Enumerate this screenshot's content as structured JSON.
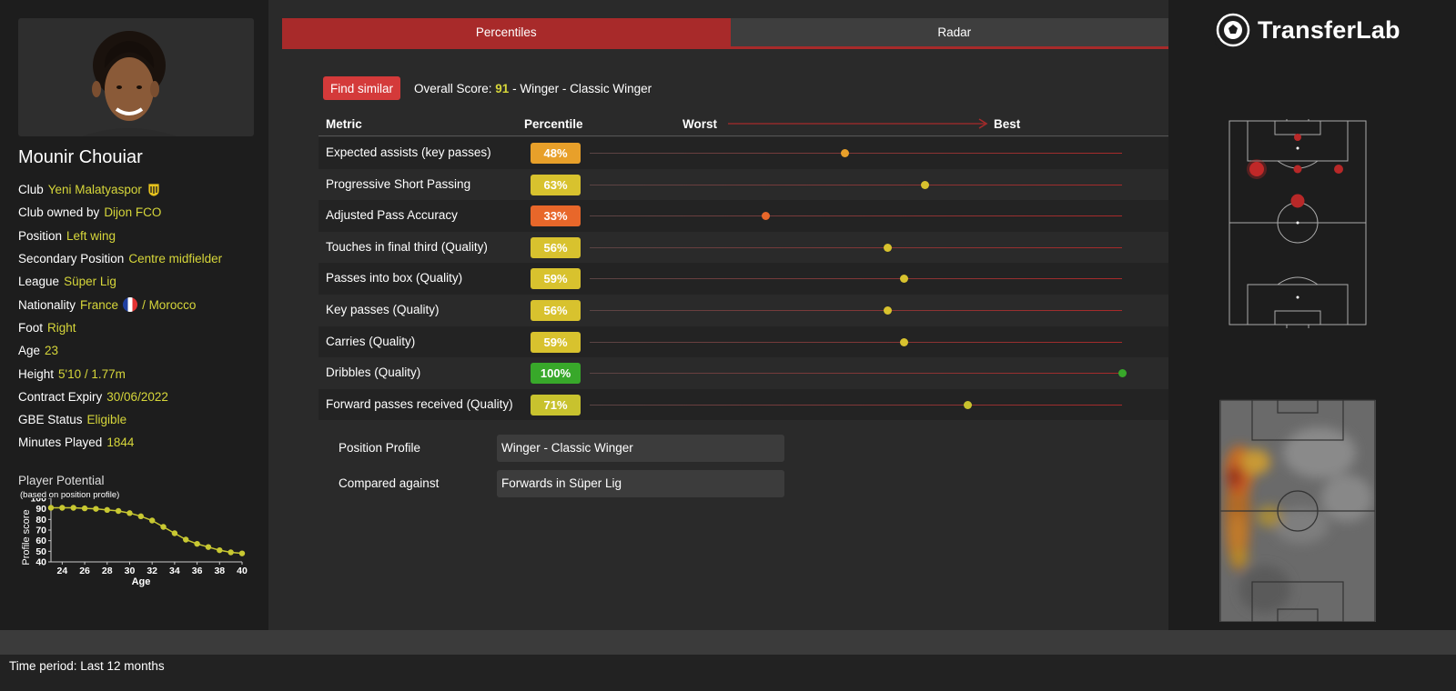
{
  "tabs": [
    {
      "label": "Percentiles"
    },
    {
      "label": "Radar"
    }
  ],
  "player": {
    "name": "Mounir Chouiar",
    "info": [
      {
        "label": "Club",
        "value": "Yeni Malatyaspor"
      },
      {
        "label": "Club owned by",
        "value": "Dijon FCO"
      },
      {
        "label": "Position",
        "value": "Left wing"
      },
      {
        "label": "Secondary Position",
        "value": "Centre midfielder"
      },
      {
        "label": "League",
        "value": "Süper Lig"
      },
      {
        "label": "Nationality",
        "value": "France",
        "value2": "/ Morocco"
      },
      {
        "label": "Foot",
        "value": "Right"
      },
      {
        "label": "Age",
        "value": "23"
      },
      {
        "label": "Height",
        "value": "5'10 / 1.77m"
      },
      {
        "label": "Contract Expiry",
        "value": "30/06/2022"
      },
      {
        "label": "GBE Status",
        "value": "Eligible"
      },
      {
        "label": "Minutes Played",
        "value": "1844"
      }
    ]
  },
  "potential": {
    "title": "Player Potential",
    "subtitle": "(based on position profile)"
  },
  "chart_data": {
    "type": "line",
    "xlabel": "Age",
    "ylabel": "Profile score",
    "xlim": [
      23,
      40
    ],
    "ylim": [
      40,
      100
    ],
    "xticks": [
      24,
      26,
      28,
      30,
      32,
      34,
      36,
      38,
      40
    ],
    "yticks": [
      40,
      50,
      60,
      70,
      80,
      90,
      100
    ],
    "x": [
      23,
      24,
      25,
      26,
      27,
      28,
      29,
      30,
      31,
      32,
      33,
      34,
      35,
      36,
      37,
      38,
      39,
      40
    ],
    "y": [
      91,
      91,
      91,
      90.5,
      90,
      89,
      88,
      86,
      83,
      79,
      73,
      67,
      61,
      57,
      54,
      51,
      49,
      48
    ],
    "color": "#c8c832",
    "grid": false
  },
  "find_similar": "Find similar",
  "overall": {
    "prefix": "Overall Score:",
    "score": "91",
    "suffix": "- Winger - Classic Winger"
  },
  "table": {
    "headers": {
      "metric": "Metric",
      "percentile": "Percentile",
      "worst": "Worst",
      "best": "Best"
    },
    "rows": [
      {
        "metric": "Expected assists (key passes)",
        "pct": "48%",
        "value": 48,
        "color": "#e8a02a"
      },
      {
        "metric": "Progressive Short Passing",
        "pct": "63%",
        "value": 63,
        "color": "#d8c22e"
      },
      {
        "metric": "Adjusted Pass Accuracy",
        "pct": "33%",
        "value": 33,
        "color": "#e8672a"
      },
      {
        "metric": "Touches in final third (Quality)",
        "pct": "56%",
        "value": 56,
        "color": "#d8c22e"
      },
      {
        "metric": "Passes into box (Quality)",
        "pct": "59%",
        "value": 59,
        "color": "#d8c22e"
      },
      {
        "metric": "Key passes (Quality)",
        "pct": "56%",
        "value": 56,
        "color": "#d8c22e"
      },
      {
        "metric": "Carries (Quality)",
        "pct": "59%",
        "value": 59,
        "color": "#d8c22e"
      },
      {
        "metric": "Dribbles (Quality)",
        "pct": "100%",
        "value": 100,
        "color": "#38a82a"
      },
      {
        "metric": "Forward passes received (Quality)",
        "pct": "71%",
        "value": 71,
        "color": "#c8c22e"
      }
    ]
  },
  "profile": {
    "position_label": "Position Profile",
    "position_value": "Winger - Classic Winger",
    "compared_label": "Compared against",
    "compared_value": "Forwards in Süper Lig"
  },
  "logo": "TransferLab",
  "footer": "Time period: Last 12 months",
  "colors": {
    "accent": "#a82a2a",
    "value_text": "#d6d63a",
    "button": "#d43a3a"
  }
}
